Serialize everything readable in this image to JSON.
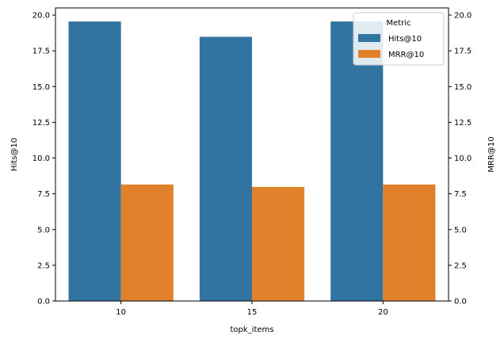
{
  "chart_data": {
    "type": "bar",
    "categories": [
      "10",
      "15",
      "20"
    ],
    "series": [
      {
        "name": "Hits@10",
        "values": [
          19.55,
          18.48,
          19.55
        ],
        "color": "#3274a1"
      },
      {
        "name": "MRR@10",
        "values": [
          8.15,
          7.98,
          8.15
        ],
        "color": "#e1812c"
      }
    ],
    "xlabel": "topk_items",
    "ylabel_left": "Hits@10",
    "ylabel_right": "MRR@10",
    "ylim": [
      0,
      20.5
    ],
    "yticks": [
      "0.0",
      "2.5",
      "5.0",
      "7.5",
      "10.0",
      "12.5",
      "15.0",
      "17.5",
      "20.0"
    ],
    "grid": false,
    "legend": {
      "title": "Metric",
      "position": "top-right"
    }
  }
}
